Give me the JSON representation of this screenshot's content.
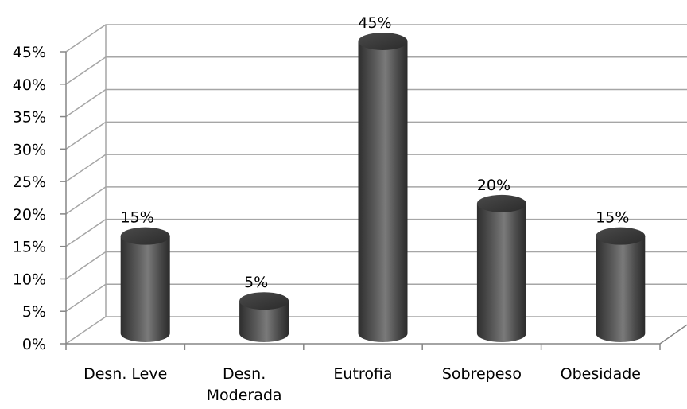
{
  "chart_data": {
    "type": "bar",
    "style": "3d-cylinder",
    "categories": [
      [
        "Desn. Leve"
      ],
      [
        "Desn.",
        "Moderada"
      ],
      [
        "Eutrofia"
      ],
      [
        "Sobrepeso"
      ],
      [
        "Obesidade"
      ]
    ],
    "values": [
      15,
      5,
      45,
      20,
      15
    ],
    "data_labels": [
      "15%",
      "5%",
      "45%",
      "20%",
      "15%"
    ],
    "ylim": [
      0,
      45
    ],
    "ytick_step": 5,
    "ytick_labels": [
      "0%",
      "5%",
      "10%",
      "15%",
      "20%",
      "25%",
      "30%",
      "35%",
      "40%",
      "45%"
    ],
    "grid": true,
    "legend": "none",
    "title": "",
    "xlabel": "",
    "ylabel": ""
  },
  "colors": {
    "bar_dark": "#2e2e2e",
    "bar_mid": "#5a5a5a",
    "bar_light": "#7c7c7c",
    "bar_top": "#3a3a3a",
    "grid": "#a6a6a6",
    "axis": "#868686"
  }
}
